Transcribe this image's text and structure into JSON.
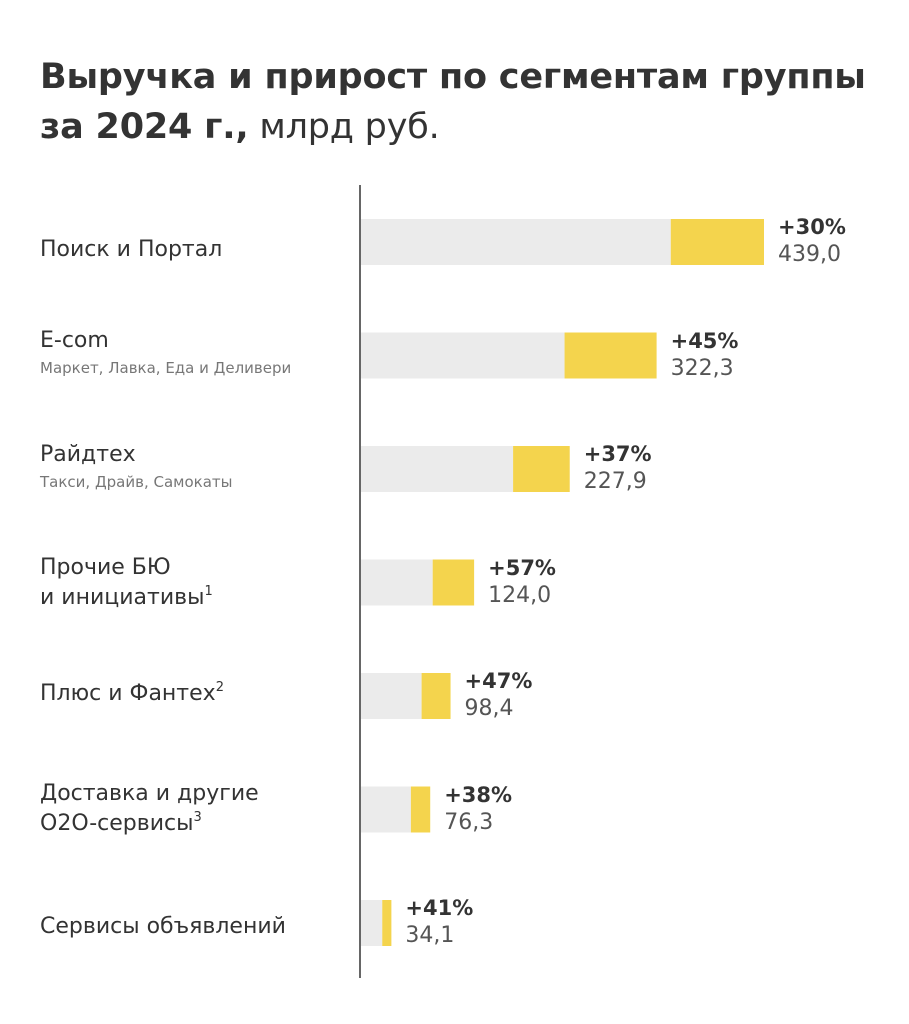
{
  "title": {
    "bold": "Выручка и прирост по сегментам группы за 2024 г.,",
    "regular": "млрд руб."
  },
  "colors": {
    "base_bar": "#ebebeb",
    "growth_bar": "#f4d44d",
    "axis": "#333333",
    "text": "#333333"
  },
  "chart_data": {
    "type": "bar",
    "orientation": "horizontal",
    "stacked": true,
    "unit": "млрд руб.",
    "categories": [
      "Поиск и Портал",
      "E-com",
      "Райдтех",
      "Прочие БЮ и инициативы",
      "Плюс и Фантех",
      "Доставка и другие O2O-сервисы",
      "Сервисы объявлений"
    ],
    "values": [
      439.0,
      322.3,
      227.9,
      124.0,
      98.4,
      76.3,
      34.1
    ],
    "value_labels": [
      "439,0",
      "322,3",
      "227,9",
      "124,0",
      "98,4",
      "76,3",
      "34,1"
    ],
    "growth_labels": [
      "+30%",
      "+45%",
      "+37%",
      "+57%",
      "+47%",
      "+38%",
      "+41%"
    ],
    "growth_pct": [
      30,
      45,
      37,
      57,
      47,
      38,
      41
    ],
    "xlim": [
      0,
      439.0
    ],
    "grid": false,
    "legend": "none"
  },
  "segments": [
    {
      "name": "Поиск и Портал",
      "sub": "",
      "footnote": ""
    },
    {
      "name": "E-com",
      "sub": "Маркет, Лавка, Еда и Деливери",
      "footnote": ""
    },
    {
      "name": "Райдтех",
      "sub": "Такси, Драйв, Самокаты",
      "footnote": ""
    },
    {
      "name_line1": "Прочие БЮ",
      "name_line2": "и инициативы",
      "footnote": "1"
    },
    {
      "name": "Плюс и Фантех",
      "footnote": "2"
    },
    {
      "name_line1": "Доставка и другие",
      "name_line2": "O2O-сервисы",
      "footnote": "3"
    },
    {
      "name": "Сервисы объявлений",
      "footnote": ""
    }
  ]
}
